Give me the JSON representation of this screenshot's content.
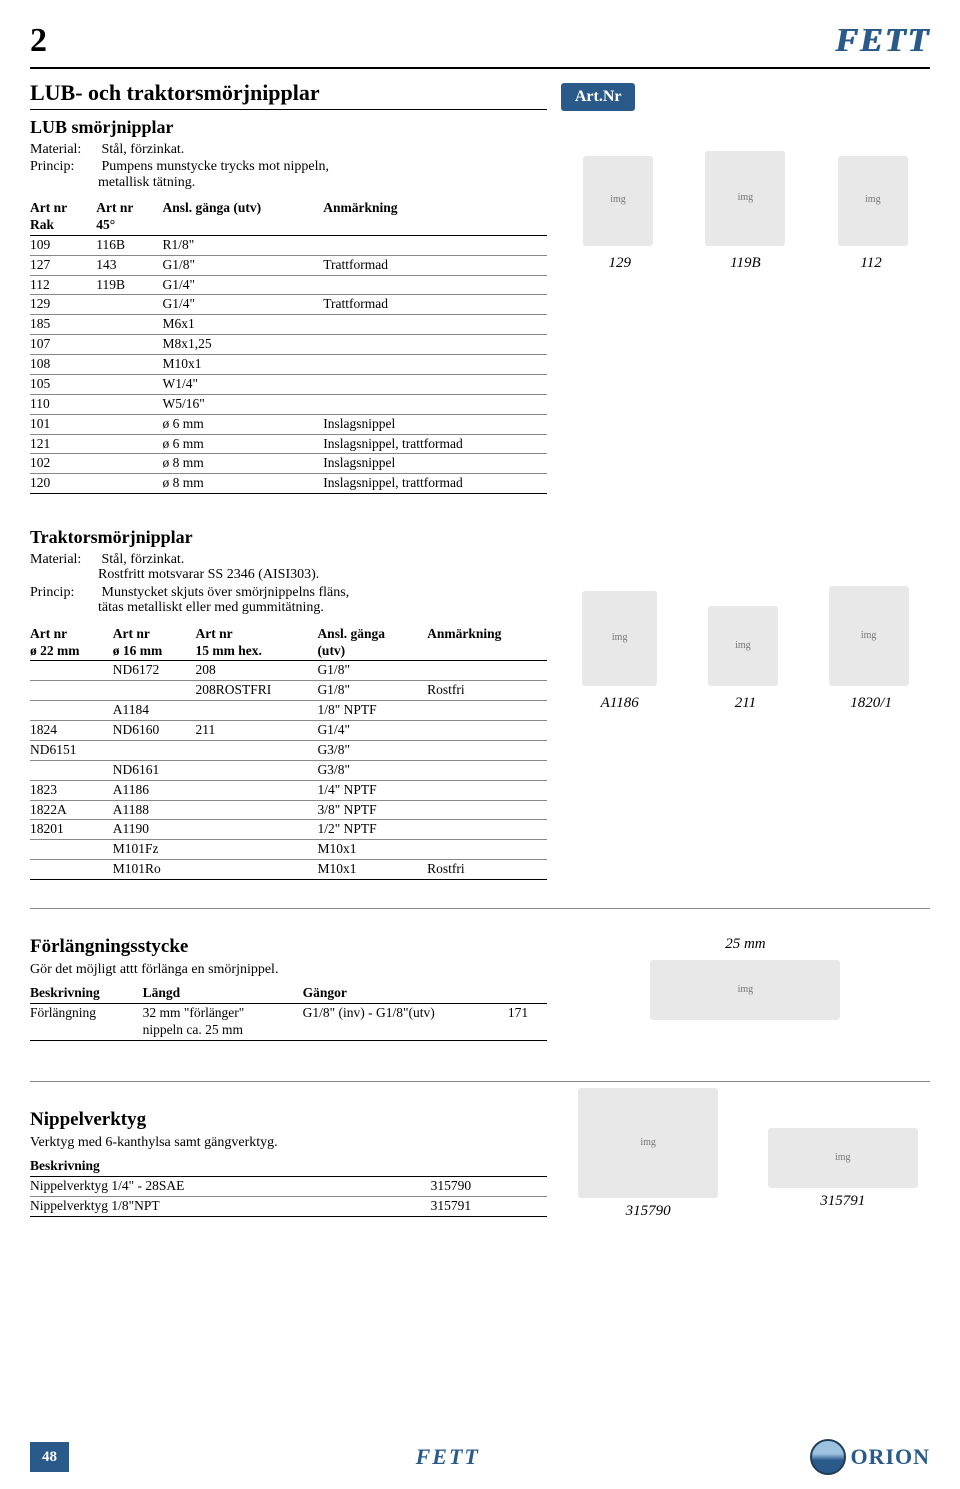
{
  "header": {
    "page_number": "2",
    "brand": "FETT"
  },
  "artnr_label": "Art.Nr",
  "section1": {
    "title": "LUB- och traktorsmörjnipplar",
    "sub_title": "LUB smörjnipplar",
    "material_label": "Material:",
    "material_value": "Stål, förzinkat.",
    "princip_label": "Princip:",
    "princip_value": "Pumpens munstycke trycks mot nippeln,",
    "princip_value2": "metallisk tätning.",
    "table": {
      "headers": {
        "c1a": "Art nr",
        "c1b": "Rak",
        "c2a": "Art nr",
        "c2b": "45°",
        "c3": "Ansl. gänga (utv)",
        "c4": "Anmärkning"
      },
      "rows": [
        {
          "c1": "109",
          "c2": "116B",
          "c3": "R1/8\"",
          "c4": ""
        },
        {
          "c1": "127",
          "c2": "143",
          "c3": "G1/8\"",
          "c4": "Trattformad"
        },
        {
          "c1": "112",
          "c2": "119B",
          "c3": "G1/4\"",
          "c4": ""
        },
        {
          "c1": "129",
          "c2": "",
          "c3": "G1/4\"",
          "c4": "Trattformad"
        },
        {
          "c1": "185",
          "c2": "",
          "c3": "M6x1",
          "c4": ""
        },
        {
          "c1": "107",
          "c2": "",
          "c3": "M8x1,25",
          "c4": ""
        },
        {
          "c1": "108",
          "c2": "",
          "c3": "M10x1",
          "c4": ""
        },
        {
          "c1": "105",
          "c2": "",
          "c3": "W1/4\"",
          "c4": ""
        },
        {
          "c1": "110",
          "c2": "",
          "c3": "W5/16\"",
          "c4": ""
        },
        {
          "c1": "101",
          "c2": "",
          "c3": "ø 6 mm",
          "c4": "Inslagsnippel"
        },
        {
          "c1": "121",
          "c2": "",
          "c3": "ø 6 mm",
          "c4": "Inslagsnippel, trattformad"
        },
        {
          "c1": "102",
          "c2": "",
          "c3": "ø 8 mm",
          "c4": "Inslagsnippel"
        },
        {
          "c1": "120",
          "c2": "",
          "c3": "ø 8 mm",
          "c4": "Inslagsnippel, trattformad"
        }
      ]
    },
    "captions": [
      "129",
      "119B",
      "112"
    ]
  },
  "section2": {
    "sub_title": "Traktorsmörjnipplar",
    "material_label": "Material:",
    "material_value": "Stål, förzinkat.",
    "material_value2": "Rostfritt motsvarar SS 2346 (AISI303).",
    "princip_label": "Princip:",
    "princip_value": "Munstycket skjuts över smörjnippelns fläns,",
    "princip_value2": "tätas metalliskt eller med gummitätning.",
    "table": {
      "headers": {
        "c1a": "Art nr",
        "c1b": "ø 22 mm",
        "c2a": "Art nr",
        "c2b": "ø 16 mm",
        "c3a": "Art nr",
        "c3b": "15 mm hex.",
        "c4a": "Ansl. gänga",
        "c4b": "(utv)",
        "c5": "Anmärkning"
      },
      "rows": [
        {
          "c1": "",
          "c2": "ND6172",
          "c3": "208",
          "c4": "G1/8\"",
          "c5": ""
        },
        {
          "c1": "",
          "c2": "",
          "c3": "208ROSTFRI",
          "c4": "G1/8\"",
          "c5": "Rostfri"
        },
        {
          "c1": "",
          "c2": "A1184",
          "c3": "",
          "c4": "1/8\" NPTF",
          "c5": ""
        },
        {
          "c1": "1824",
          "c2": "ND6160",
          "c3": "211",
          "c4": "G1/4\"",
          "c5": ""
        },
        {
          "c1": "ND6151",
          "c2": "",
          "c3": "",
          "c4": "G3/8\"",
          "c5": ""
        },
        {
          "c1": "",
          "c2": "ND6161",
          "c3": "",
          "c4": "G3/8\"",
          "c5": ""
        },
        {
          "c1": "1823",
          "c2": "A1186",
          "c3": "",
          "c4": "1/4\" NPTF",
          "c5": ""
        },
        {
          "c1": "1822A",
          "c2": "A1188",
          "c3": "",
          "c4": "3/8\" NPTF",
          "c5": ""
        },
        {
          "c1": "18201",
          "c2": "A1190",
          "c3": "",
          "c4": "1/2\" NPTF",
          "c5": ""
        },
        {
          "c1": "",
          "c2": "M101Fz",
          "c3": "",
          "c4": "M10x1",
          "c5": ""
        },
        {
          "c1": "",
          "c2": "M101Ro",
          "c3": "",
          "c4": "M10x1",
          "c5": "Rostfri"
        }
      ]
    },
    "captions": [
      "A1186",
      "211",
      "1820/1"
    ]
  },
  "section3": {
    "title": "Förlängningsstycke",
    "subtitle": "Gör det möjligt attt förlänga en smörjnippel.",
    "table": {
      "headers": {
        "c1": "Beskrivning",
        "c2": "Längd",
        "c3": "Gängor"
      },
      "rows": [
        {
          "c1": "Förlängning",
          "c2": "32 mm \"förlänger\"",
          "c2b": "nippeln ca. 25 mm",
          "c3": "G1/8\" (inv) - G1/8\"(utv)",
          "c4": "171"
        }
      ]
    },
    "right_caption": "25 mm"
  },
  "section4": {
    "title": "Nippelverktyg",
    "subtitle": "Verktyg med 6-kanthylsa samt gängverktyg.",
    "table": {
      "headers": {
        "c1": "Beskrivning"
      },
      "rows": [
        {
          "c1": "Nippelverktyg 1/4\" - 28SAE",
          "c2": "315790"
        },
        {
          "c1": "Nippelverktyg 1/8\"NPT",
          "c2": "315791"
        }
      ]
    },
    "captions": [
      "315790",
      "315791"
    ]
  },
  "footer": {
    "page": "48",
    "brand": "FETT",
    "logo": "ORION"
  },
  "colors": {
    "accent": "#2a5a8a",
    "text": "#000000",
    "bg": "#ffffff"
  }
}
